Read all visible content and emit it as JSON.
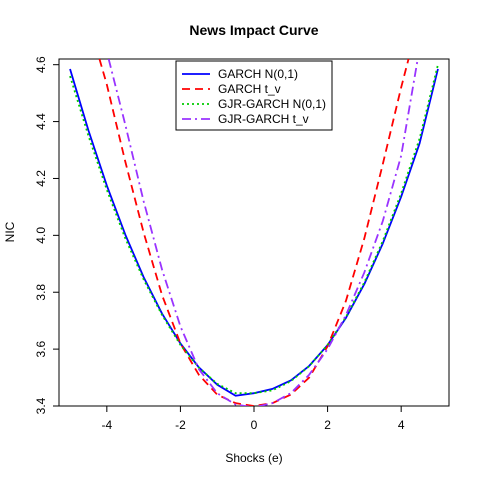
{
  "chart_data": {
    "type": "line",
    "title": "News Impact Curve",
    "xlabel": "Shocks (e)",
    "ylabel": "NIC",
    "xlim": [
      -5.3,
      5.3
    ],
    "ylim": [
      3.4,
      4.62
    ],
    "xticks": [
      -4,
      -2,
      0,
      2,
      4
    ],
    "xtick_labels": [
      "-4",
      "-2",
      "0",
      "2",
      "4"
    ],
    "yticks": [
      3.4,
      3.6,
      3.8,
      4.0,
      4.2,
      4.4,
      4.6
    ],
    "ytick_labels": [
      "3.4",
      "3.6",
      "3.8",
      "4.0",
      "4.2",
      "4.4",
      "4.6"
    ],
    "grid": false,
    "legend_position": "top-center",
    "series": [
      {
        "name": "GARCH N(0,1)",
        "color": "#0000ff",
        "dash": "solid",
        "x": [
          -5.0,
          -4.5,
          -4.0,
          -3.5,
          -3.0,
          -2.5,
          -2.0,
          -1.5,
          -1.0,
          -0.5,
          0.0,
          0.5,
          1.0,
          1.5,
          2.0,
          2.5,
          3.0,
          3.5,
          4.0,
          4.5,
          5.0
        ],
        "y": [
          4.585,
          4.369,
          4.175,
          4.003,
          3.853,
          3.725,
          3.62,
          3.536,
          3.475,
          3.436,
          3.445,
          3.46,
          3.49,
          3.541,
          3.614,
          3.71,
          3.829,
          3.971,
          4.136,
          4.323,
          4.585
        ]
      },
      {
        "name": "GARCH t_v",
        "color": "#ff0000",
        "dash": "dashed",
        "x": [
          -4.2,
          -4.0,
          -3.5,
          -3.0,
          -2.5,
          -2.0,
          -1.5,
          -1.0,
          -0.5,
          0.0,
          0.5,
          1.0,
          1.5,
          2.0,
          2.5,
          3.0,
          3.5,
          4.0,
          4.2
        ],
        "y": [
          4.62,
          4.53,
          4.26,
          4.01,
          3.79,
          3.62,
          3.51,
          3.44,
          3.41,
          3.4,
          3.41,
          3.44,
          3.5,
          3.61,
          3.77,
          3.99,
          4.25,
          4.52,
          4.62
        ]
      },
      {
        "name": "GJR-GARCH N(0,1)",
        "color": "#00cc00",
        "dash": "dotted",
        "x": [
          -5.0,
          -4.5,
          -4.0,
          -3.5,
          -3.0,
          -2.5,
          -2.0,
          -1.5,
          -1.0,
          -0.5,
          0.0,
          0.5,
          1.0,
          1.5,
          2.0,
          2.5,
          3.0,
          3.5,
          4.0,
          4.5,
          5.0
        ],
        "y": [
          4.56,
          4.35,
          4.16,
          3.99,
          3.845,
          3.72,
          3.615,
          3.535,
          3.478,
          3.445,
          3.445,
          3.455,
          3.487,
          3.54,
          3.615,
          3.713,
          3.835,
          3.98,
          4.148,
          4.34,
          4.6
        ]
      },
      {
        "name": "GJR-GARCH t_v",
        "color": "#9933ff",
        "dash": "dashdot",
        "x": [
          -3.95,
          -3.5,
          -3.0,
          -2.5,
          -2.0,
          -1.5,
          -1.0,
          -0.5,
          0.0,
          0.5,
          1.0,
          1.5,
          2.0,
          2.5,
          3.0,
          3.5,
          4.0,
          4.45
        ],
        "y": [
          4.62,
          4.39,
          4.12,
          3.88,
          3.68,
          3.53,
          3.445,
          3.405,
          3.395,
          3.41,
          3.445,
          3.51,
          3.6,
          3.72,
          3.87,
          4.05,
          4.28,
          4.62
        ]
      }
    ]
  }
}
